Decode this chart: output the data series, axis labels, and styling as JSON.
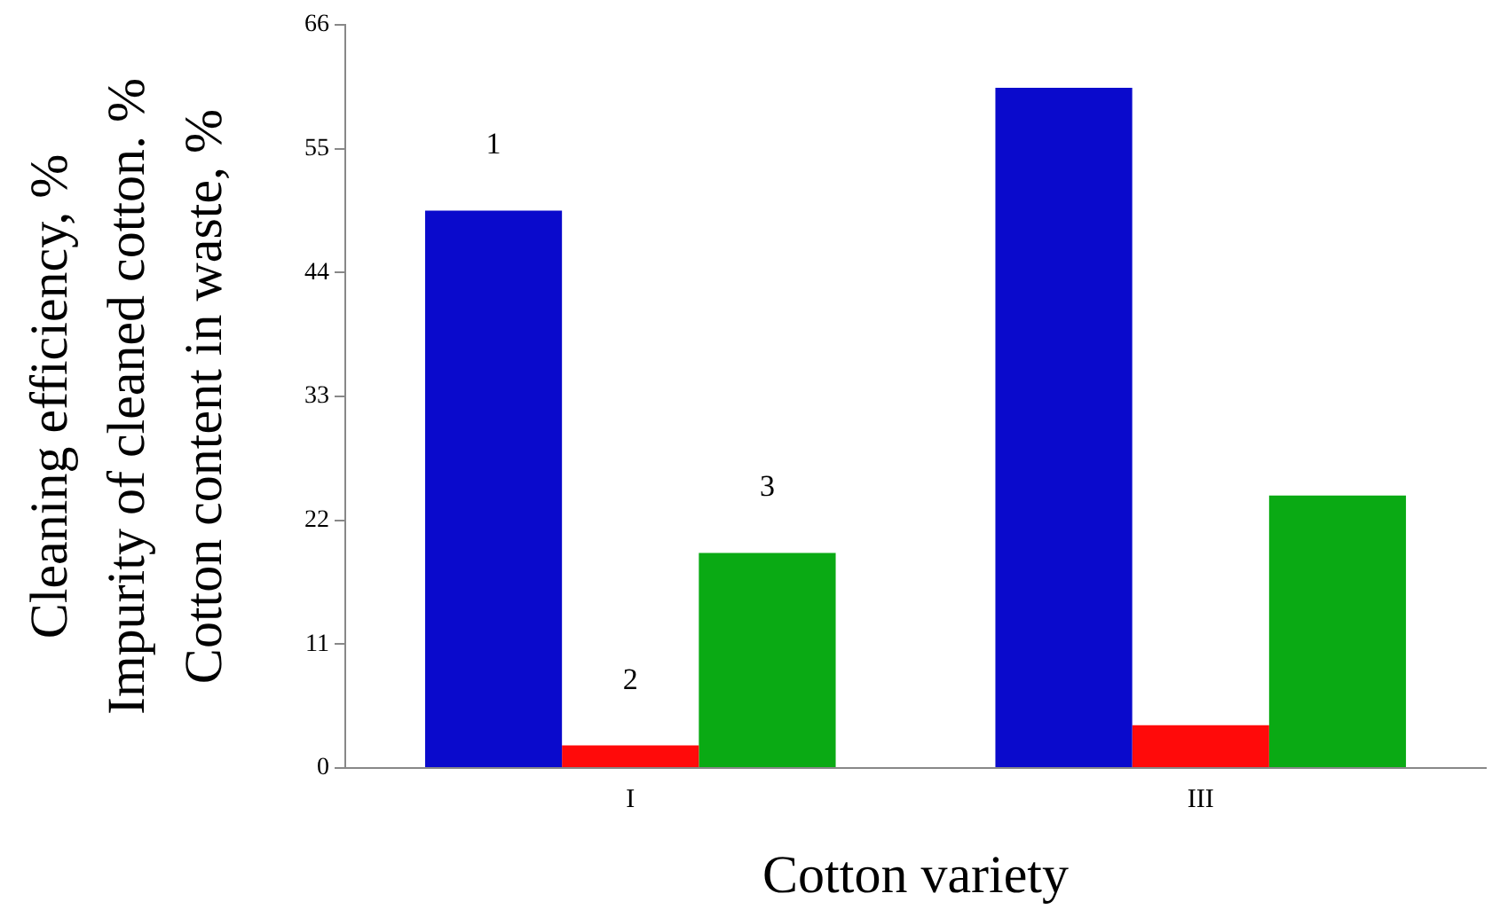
{
  "chart_data": {
    "type": "bar",
    "xlabel": "Cotton variety",
    "ylabel": "Cleaning efficiency, %\nImpurity of cleaned cotton. %\nCotton content in waste, %",
    "categories": [
      "I",
      "III"
    ],
    "series": [
      {
        "name": "1",
        "color": "#0a0acc",
        "values": [
          49.5,
          60.4
        ]
      },
      {
        "name": "2",
        "color": "#ff0a0a",
        "values": [
          2,
          3.8
        ]
      },
      {
        "name": "3",
        "color": "#0aaa14",
        "values": [
          19.1,
          24.2
        ]
      }
    ],
    "ylim": [
      0,
      66
    ],
    "yticks": [
      0,
      11,
      22,
      33,
      44,
      55,
      66
    ],
    "grid": false,
    "legend": false
  }
}
